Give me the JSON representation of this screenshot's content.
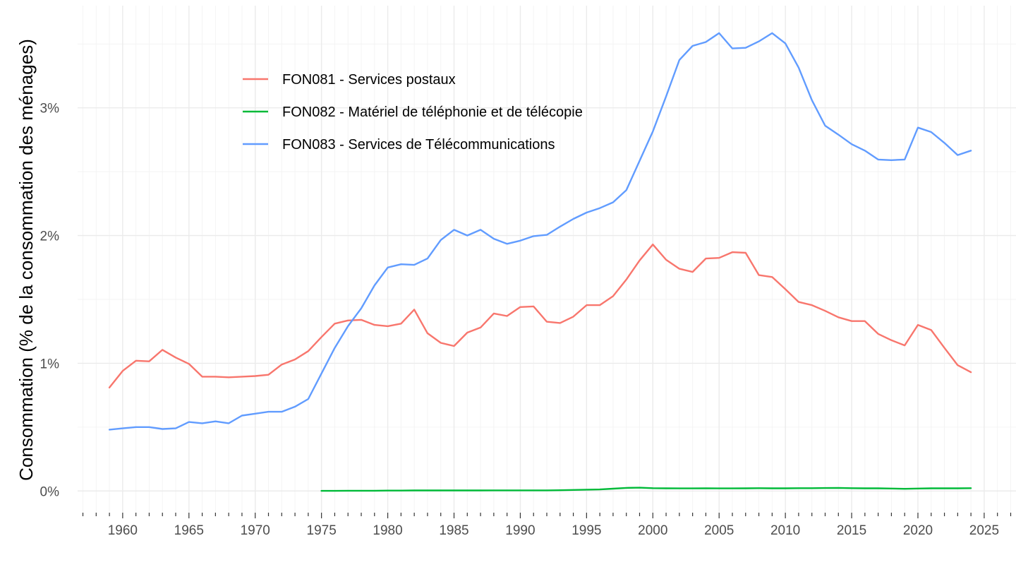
{
  "chart_data": {
    "type": "line",
    "title": "",
    "xlabel": "",
    "ylabel": "Consommation (% de la consommation des ménages)",
    "xlim": [
      1956.6,
      2027.4
    ],
    "ylim": [
      -0.17,
      3.8
    ],
    "x_ticks": [
      1960,
      1965,
      1970,
      1975,
      1980,
      1985,
      1990,
      1995,
      2000,
      2005,
      2010,
      2015,
      2020,
      2025
    ],
    "y_ticks": [
      0,
      1,
      2,
      3
    ],
    "y_tick_labels": [
      "0%",
      "1%",
      "2%",
      "3%"
    ],
    "grid": true,
    "legend_position": "top-left",
    "series": [
      {
        "name": "FON081 - Services postaux",
        "color": "#F8766D",
        "x": [
          1959,
          1960,
          1961,
          1962,
          1963,
          1964,
          1965,
          1966,
          1967,
          1968,
          1969,
          1970,
          1971,
          1972,
          1973,
          1974,
          1975,
          1976,
          1977,
          1978,
          1979,
          1980,
          1981,
          1982,
          1983,
          1984,
          1985,
          1986,
          1987,
          1988,
          1989,
          1990,
          1991,
          1992,
          1993,
          1994,
          1995,
          1996,
          1997,
          1998,
          1999,
          2000,
          2001,
          2002,
          2003,
          2004,
          2005,
          2006,
          2007,
          2008,
          2009,
          2010,
          2011,
          2012,
          2013,
          2014,
          2015,
          2016,
          2017,
          2018,
          2019,
          2020,
          2021,
          2022,
          2023,
          2024
        ],
        "values": [
          0.81,
          0.94,
          1.02,
          1.015,
          1.105,
          1.045,
          0.995,
          0.895,
          0.895,
          0.89,
          0.895,
          0.9,
          0.91,
          0.99,
          1.03,
          1.095,
          1.205,
          1.31,
          1.335,
          1.34,
          1.3,
          1.29,
          1.31,
          1.42,
          1.235,
          1.16,
          1.135,
          1.24,
          1.28,
          1.39,
          1.37,
          1.44,
          1.445,
          1.325,
          1.315,
          1.365,
          1.455,
          1.455,
          1.525,
          1.655,
          1.805,
          1.93,
          1.81,
          1.74,
          1.715,
          1.82,
          1.825,
          1.87,
          1.865,
          1.69,
          1.675,
          1.58,
          1.48,
          1.455,
          1.41,
          1.36,
          1.33,
          1.33,
          1.23,
          1.18,
          1.14,
          1.3,
          1.26,
          1.12,
          0.985,
          0.93
        ]
      },
      {
        "name": "FON082 - Matériel de téléphonie et de télécopie",
        "color": "#00BA38",
        "x": [
          1975,
          1976,
          1977,
          1978,
          1979,
          1980,
          1981,
          1982,
          1983,
          1984,
          1985,
          1986,
          1987,
          1988,
          1989,
          1990,
          1991,
          1992,
          1993,
          1994,
          1995,
          1996,
          1997,
          1998,
          1999,
          2000,
          2001,
          2002,
          2003,
          2004,
          2005,
          2006,
          2007,
          2008,
          2009,
          2010,
          2011,
          2012,
          2013,
          2014,
          2015,
          2016,
          2017,
          2018,
          2019,
          2020,
          2021,
          2022,
          2023,
          2024
        ],
        "values": [
          0.001,
          0.001,
          0.002,
          0.002,
          0.002,
          0.003,
          0.003,
          0.004,
          0.004,
          0.004,
          0.004,
          0.004,
          0.004,
          0.005,
          0.005,
          0.005,
          0.005,
          0.005,
          0.006,
          0.008,
          0.01,
          0.012,
          0.018,
          0.024,
          0.026,
          0.022,
          0.021,
          0.02,
          0.02,
          0.021,
          0.02,
          0.02,
          0.021,
          0.022,
          0.021,
          0.021,
          0.022,
          0.022,
          0.023,
          0.024,
          0.022,
          0.021,
          0.021,
          0.019,
          0.017,
          0.019,
          0.021,
          0.021,
          0.021,
          0.022
        ]
      },
      {
        "name": "FON083 - Services de Télécommunications",
        "color": "#619CFF",
        "x": [
          1959,
          1960,
          1961,
          1962,
          1963,
          1964,
          1965,
          1966,
          1967,
          1968,
          1969,
          1970,
          1971,
          1972,
          1973,
          1974,
          1975,
          1976,
          1977,
          1978,
          1979,
          1980,
          1981,
          1982,
          1983,
          1984,
          1985,
          1986,
          1987,
          1988,
          1989,
          1990,
          1991,
          1992,
          1993,
          1994,
          1995,
          1996,
          1997,
          1998,
          1999,
          2000,
          2001,
          2002,
          2003,
          2004,
          2005,
          2006,
          2007,
          2008,
          2009,
          2010,
          2011,
          2012,
          2013,
          2014,
          2015,
          2016,
          2017,
          2018,
          2019,
          2020,
          2021,
          2022,
          2023,
          2024
        ],
        "values": [
          0.48,
          0.49,
          0.5,
          0.5,
          0.485,
          0.49,
          0.54,
          0.53,
          0.545,
          0.53,
          0.59,
          0.605,
          0.62,
          0.62,
          0.66,
          0.72,
          0.92,
          1.12,
          1.29,
          1.43,
          1.61,
          1.75,
          1.775,
          1.77,
          1.82,
          1.965,
          2.045,
          2.0,
          2.045,
          1.975,
          1.935,
          1.96,
          1.995,
          2.005,
          2.07,
          2.13,
          2.18,
          2.215,
          2.26,
          2.355,
          2.585,
          2.815,
          3.09,
          3.375,
          3.485,
          3.515,
          3.585,
          3.465,
          3.47,
          3.52,
          3.585,
          3.505,
          3.315,
          3.06,
          2.86,
          2.79,
          2.715,
          2.665,
          2.595,
          2.59,
          2.595,
          2.845,
          2.81,
          2.725,
          2.63,
          2.665
        ]
      }
    ]
  }
}
